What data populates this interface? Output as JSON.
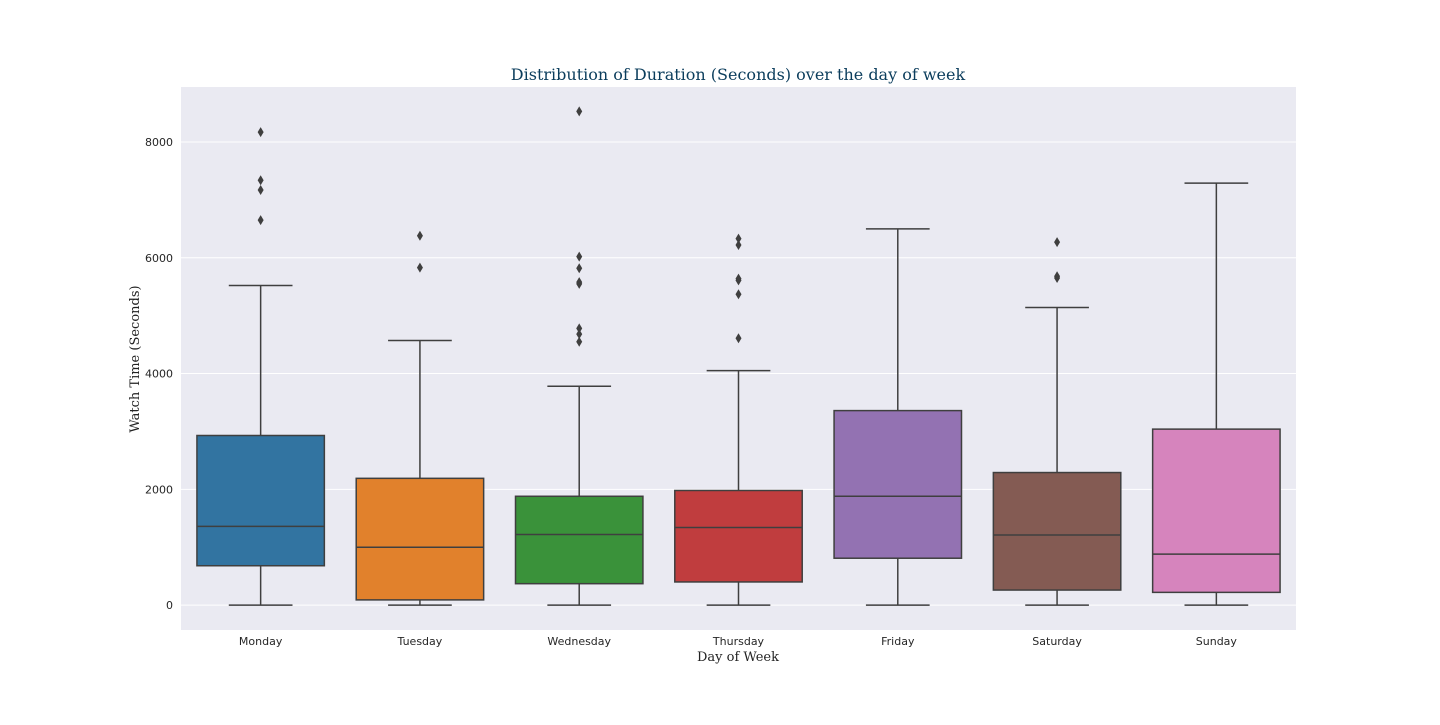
{
  "chart_data": {
    "type": "box",
    "title": "Distribution of Duration (Seconds) over the day of week",
    "xlabel": "Day of Week",
    "ylabel": "Watch Time (Seconds)",
    "ylim": [
      -430,
      8950
    ],
    "yticks": [
      0,
      2000,
      4000,
      6000,
      8000
    ],
    "grid": true,
    "legend": "none",
    "categories": [
      "Monday",
      "Tuesday",
      "Wednesday",
      "Thursday",
      "Friday",
      "Saturday",
      "Sunday"
    ],
    "boxes": [
      {
        "category": "Monday",
        "color": "#3274a1",
        "whisker_low": 0,
        "q1": 680,
        "median": 1360,
        "q3": 2930,
        "whisker_high": 5520,
        "outliers": [
          6650,
          7170,
          7340,
          8170
        ]
      },
      {
        "category": "Tuesday",
        "color": "#e1812c",
        "whisker_low": 0,
        "q1": 90,
        "median": 1000,
        "q3": 2190,
        "whisker_high": 4570,
        "outliers": [
          5830,
          6380
        ]
      },
      {
        "category": "Wednesday",
        "color": "#3a923a",
        "whisker_low": 0,
        "q1": 370,
        "median": 1220,
        "q3": 1880,
        "whisker_high": 3780,
        "outliers": [
          4550,
          4680,
          4780,
          5550,
          5580,
          5820,
          6020,
          8530
        ]
      },
      {
        "category": "Thursday",
        "color": "#c03d3e",
        "whisker_low": 0,
        "q1": 400,
        "median": 1340,
        "q3": 1980,
        "whisker_high": 4050,
        "outliers": [
          4610,
          5370,
          5610,
          5640,
          6220,
          6330
        ]
      },
      {
        "category": "Friday",
        "color": "#9372b2",
        "whisker_low": 0,
        "q1": 810,
        "median": 1880,
        "q3": 3360,
        "whisker_high": 6500,
        "outliers": []
      },
      {
        "category": "Saturday",
        "color": "#845b53",
        "whisker_low": 0,
        "q1": 260,
        "median": 1210,
        "q3": 2290,
        "whisker_high": 5140,
        "outliers": [
          5650,
          5680,
          6270
        ]
      },
      {
        "category": "Sunday",
        "color": "#d684bd",
        "whisker_low": 0,
        "q1": 220,
        "median": 880,
        "q3": 3040,
        "whisker_high": 7290,
        "outliers": []
      }
    ]
  }
}
